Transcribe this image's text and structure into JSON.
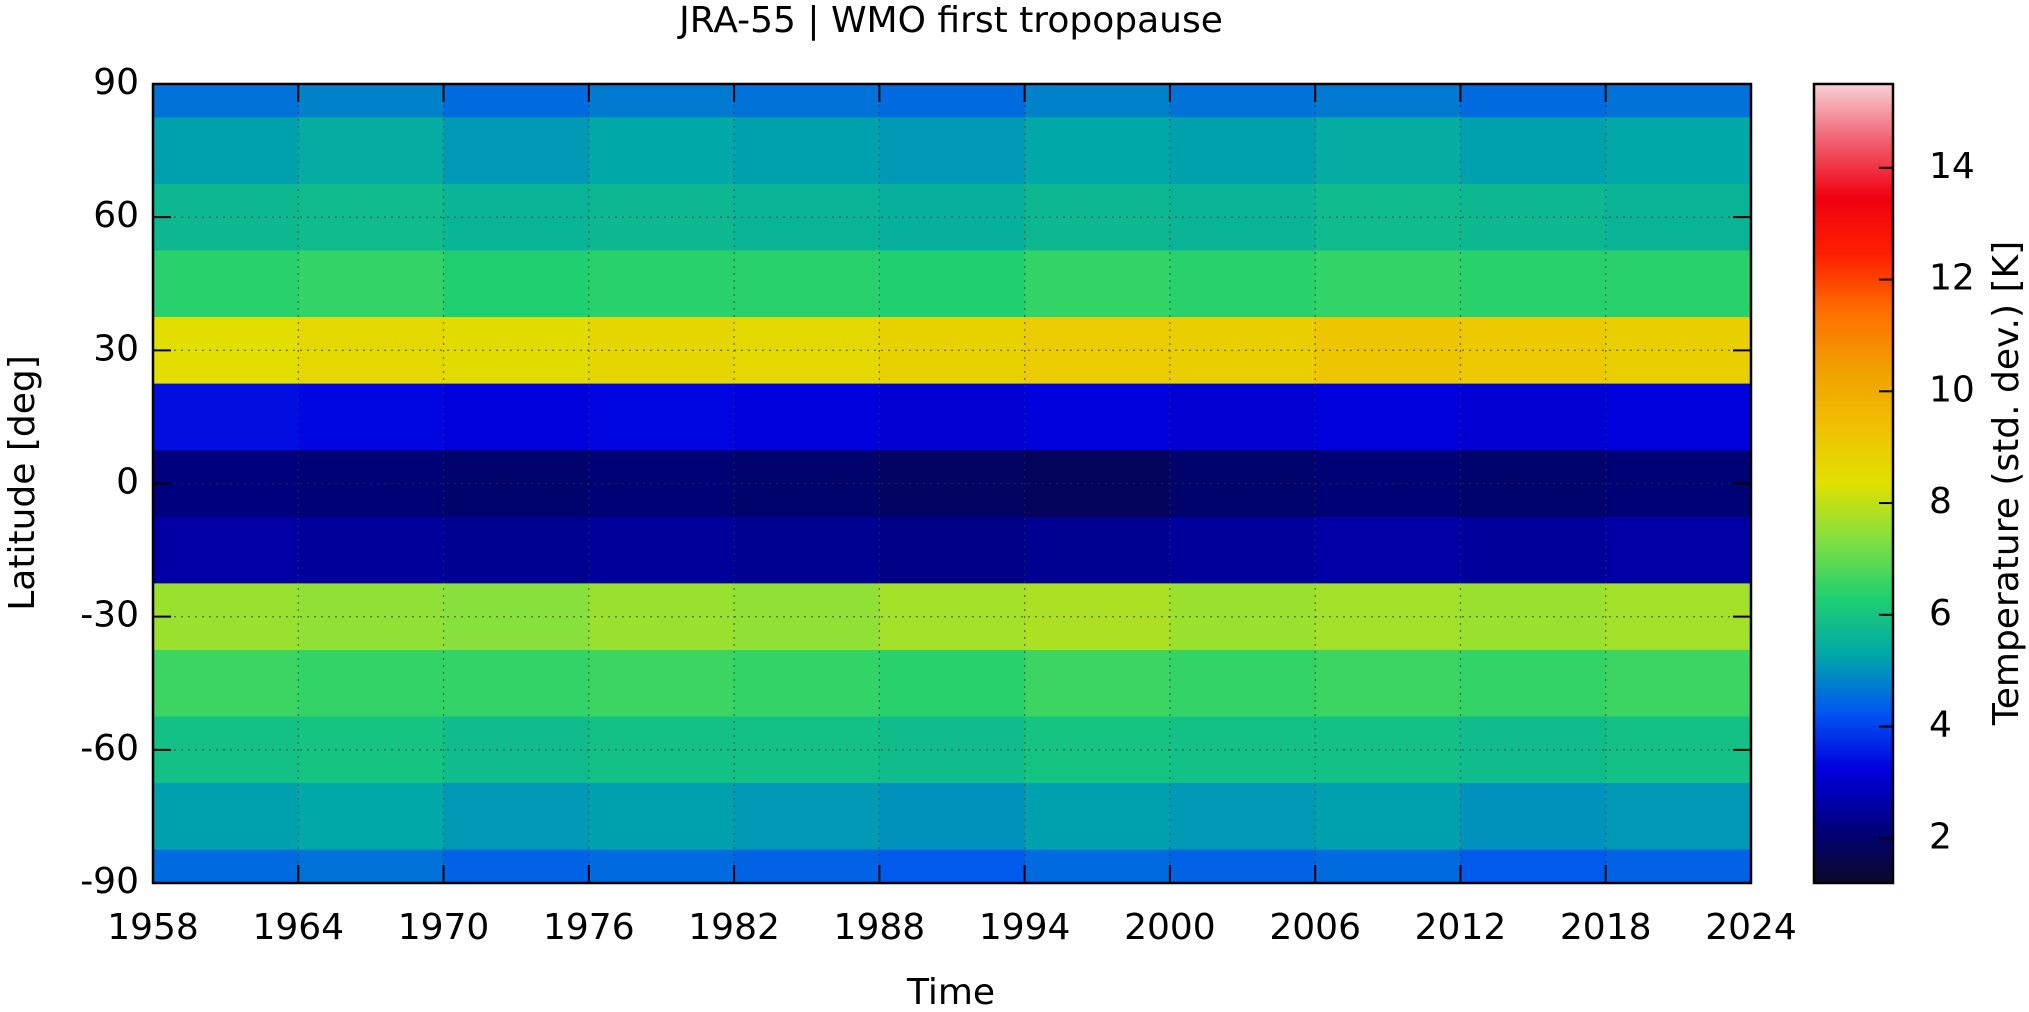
{
  "chart_data": {
    "type": "heatmap",
    "title": "JRA-55 | WMO first tropopause",
    "x_label": "Time",
    "y_label": "Latitude [deg]",
    "colorbar_label": "Temperature (std. dev.) [K]",
    "x": [
      1958,
      1964,
      1970,
      1976,
      1982,
      1988,
      1994,
      2000,
      2006,
      2012,
      2018
    ],
    "y": [
      90,
      75,
      60,
      45,
      30,
      15,
      0,
      -15,
      -30,
      -45,
      -60,
      -75,
      -90
    ],
    "z": [
      [
        4.6,
        4.8,
        4.5,
        4.7,
        4.6,
        4.5,
        4.8,
        4.6,
        4.7,
        4.5,
        4.6
      ],
      [
        5.2,
        5.4,
        5.1,
        5.3,
        5.2,
        5.1,
        5.3,
        5.2,
        5.4,
        5.2,
        5.3
      ],
      [
        5.7,
        5.8,
        5.6,
        5.7,
        5.6,
        5.5,
        5.7,
        5.6,
        5.8,
        5.7,
        5.6
      ],
      [
        6.4,
        6.5,
        6.3,
        6.4,
        6.4,
        6.3,
        6.5,
        6.4,
        6.5,
        6.4,
        6.4
      ],
      [
        8.4,
        8.6,
        8.5,
        8.7,
        8.6,
        8.8,
        9.0,
        8.9,
        9.2,
        9.1,
        8.9
      ],
      [
        3.4,
        3.3,
        3.2,
        3.3,
        3.2,
        3.1,
        3.2,
        3.1,
        3.2,
        3.1,
        3.2
      ],
      [
        2.2,
        2.1,
        2.0,
        2.1,
        2.0,
        1.9,
        1.8,
        2.0,
        2.1,
        2.0,
        2.1
      ],
      [
        2.6,
        2.5,
        2.4,
        2.5,
        2.4,
        2.3,
        2.4,
        2.5,
        2.6,
        2.5,
        2.6
      ],
      [
        7.6,
        7.5,
        7.4,
        7.6,
        7.5,
        7.7,
        7.8,
        7.6,
        7.7,
        7.6,
        7.7
      ],
      [
        6.6,
        6.5,
        6.5,
        6.6,
        6.5,
        6.4,
        6.6,
        6.5,
        6.6,
        6.5,
        6.6
      ],
      [
        5.9,
        6.0,
        5.8,
        5.9,
        5.9,
        5.8,
        6.0,
        5.9,
        5.9,
        5.8,
        5.9
      ],
      [
        5.2,
        5.3,
        5.1,
        5.2,
        5.1,
        5.0,
        5.2,
        5.1,
        5.2,
        5.0,
        5.1
      ],
      [
        4.5,
        4.6,
        4.4,
        4.5,
        4.4,
        4.3,
        4.5,
        4.4,
        4.5,
        4.3,
        4.4
      ]
    ],
    "xlim": [
      1958,
      2024
    ],
    "xticks": [
      1958,
      1964,
      1970,
      1976,
      1982,
      1988,
      1994,
      2000,
      2006,
      2012,
      2018,
      2024
    ],
    "ylim": [
      -90,
      90
    ],
    "yticks": [
      90,
      60,
      30,
      0,
      -30,
      -60,
      -90
    ],
    "zlim": [
      1.2,
      15.5
    ],
    "zticks": [
      2,
      4,
      6,
      8,
      10,
      12,
      14
    ],
    "colorscale": [
      "#0a0a28",
      "#000080",
      "#0000e0",
      "#0058f0",
      "#00a8a8",
      "#20d070",
      "#80e040",
      "#e0e000",
      "#f0c000",
      "#f0a000",
      "#ff7000",
      "#ff2000",
      "#f00010",
      "#f06070",
      "#f8d0d8"
    ],
    "grid": true
  }
}
